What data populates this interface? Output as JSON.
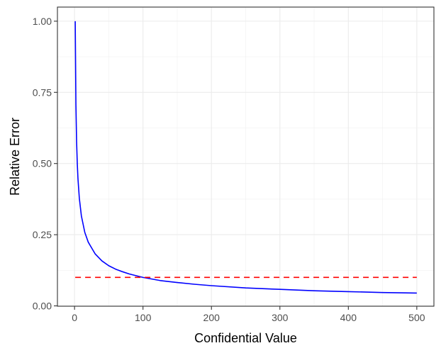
{
  "chart_data": {
    "type": "line",
    "title": "",
    "xlabel": "Confidential Value",
    "ylabel": "Relative Error",
    "xlim": [
      -25,
      525
    ],
    "ylim": [
      0,
      1.0
    ],
    "x_ticks": [
      0,
      100,
      200,
      300,
      400,
      500
    ],
    "x_tick_labels": [
      "0",
      "100",
      "200",
      "300",
      "400",
      "500"
    ],
    "y_ticks": [
      0,
      0.25,
      0.5,
      0.75,
      1.0
    ],
    "y_tick_labels": [
      "0.00",
      "0.25",
      "0.50",
      "0.75",
      "1.00"
    ],
    "grid": true,
    "legend": "none",
    "series": [
      {
        "color": "#0000FF",
        "style": "solid",
        "x": [
          1,
          2,
          3,
          4,
          5,
          7,
          10,
          15,
          20,
          30,
          40,
          50,
          60,
          70,
          80,
          100,
          125,
          150,
          175,
          200,
          250,
          300,
          350,
          400,
          450,
          500
        ],
        "y": [
          1.0,
          0.707,
          0.577,
          0.5,
          0.447,
          0.378,
          0.316,
          0.258,
          0.224,
          0.183,
          0.158,
          0.141,
          0.129,
          0.12,
          0.112,
          0.1,
          0.089,
          0.082,
          0.076,
          0.071,
          0.063,
          0.058,
          0.053,
          0.05,
          0.047,
          0.045
        ]
      },
      {
        "color": "#FF0000",
        "style": "dashed",
        "x": [
          1,
          500
        ],
        "y": [
          0.1,
          0.1
        ]
      }
    ]
  }
}
